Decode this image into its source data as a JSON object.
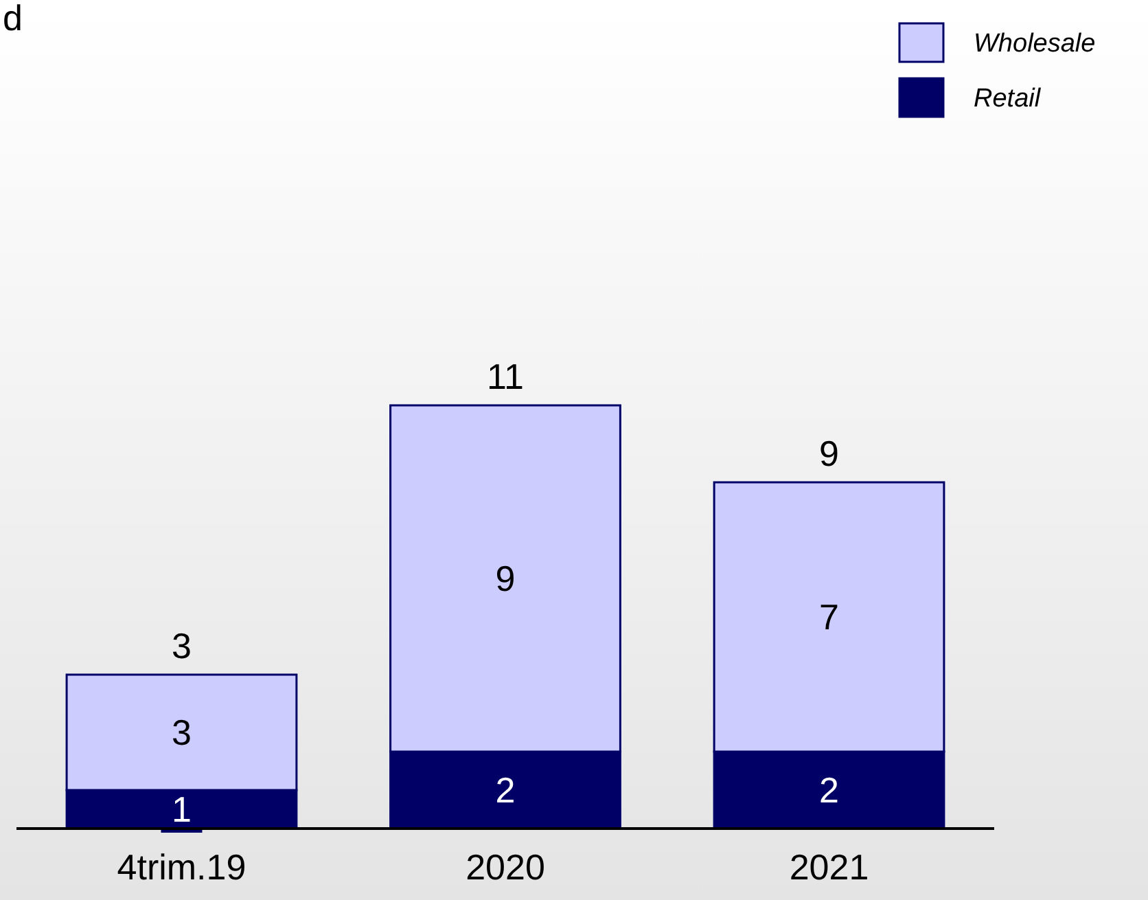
{
  "chart_data": {
    "type": "bar",
    "title": "d",
    "stacked": true,
    "data_labels": true,
    "legend": "top right",
    "categories": [
      "4trim.19",
      "2020",
      "2021"
    ],
    "series": [
      {
        "name": "Retail",
        "color": "#000066",
        "values": [
          1,
          2,
          2
        ]
      },
      {
        "name": "Wholesale",
        "color": "#ccccff",
        "values": [
          3,
          9,
          7
        ]
      }
    ],
    "totals": [
      "3",
      "11",
      "9"
    ]
  }
}
